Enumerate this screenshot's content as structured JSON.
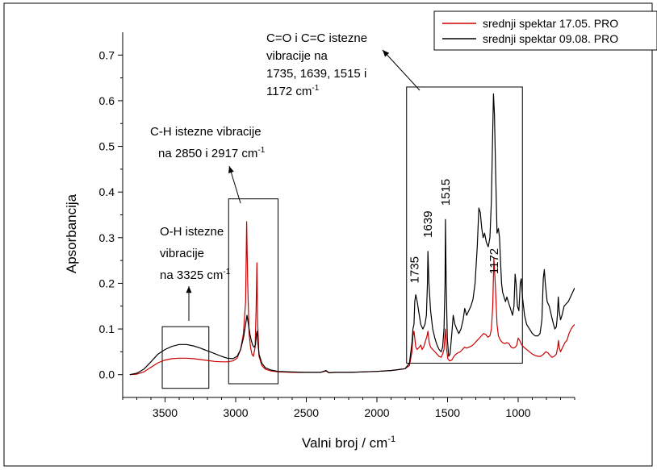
{
  "chart_data": {
    "type": "line",
    "xlabel": "Valni broj / cm",
    "xlabel_sup": "-1",
    "ylabel": "Apsorbancija",
    "xlim": [
      3800,
      600
    ],
    "ylim": [
      -0.05,
      0.75
    ],
    "x_reversed": true,
    "x_ticks": [
      3500,
      3000,
      2500,
      2000,
      1500,
      1000
    ],
    "x_tick_labels": [
      "3500",
      "3000",
      "2500",
      "2000",
      "1500",
      "1000"
    ],
    "y_ticks": [
      0.0,
      0.1,
      0.2,
      0.3,
      0.4,
      0.5,
      0.6,
      0.7
    ],
    "y_tick_labels": [
      "0.0",
      "0.1",
      "0.2",
      "0.3",
      "0.4",
      "0.5",
      "0.6",
      "0.7"
    ],
    "grid": false,
    "legend_position": "top-right",
    "series": [
      {
        "name": "srednji spektar 17.05. PRO",
        "color": "#cc0000",
        "points": [
          [
            3750,
            0.0
          ],
          [
            3700,
            0.001
          ],
          [
            3650,
            0.006
          ],
          [
            3600,
            0.016
          ],
          [
            3550,
            0.026
          ],
          [
            3500,
            0.032
          ],
          [
            3450,
            0.035
          ],
          [
            3400,
            0.036
          ],
          [
            3350,
            0.036
          ],
          [
            3300,
            0.035
          ],
          [
            3250,
            0.033
          ],
          [
            3200,
            0.031
          ],
          [
            3150,
            0.029
          ],
          [
            3100,
            0.028
          ],
          [
            3060,
            0.028
          ],
          [
            3020,
            0.03
          ],
          [
            2990,
            0.036
          ],
          [
            2965,
            0.055
          ],
          [
            2945,
            0.09
          ],
          [
            2930,
            0.16
          ],
          [
            2922,
            0.335
          ],
          [
            2915,
            0.2
          ],
          [
            2905,
            0.09
          ],
          [
            2895,
            0.06
          ],
          [
            2885,
            0.045
          ],
          [
            2875,
            0.04
          ],
          [
            2862,
            0.06
          ],
          [
            2855,
            0.15
          ],
          [
            2850,
            0.245
          ],
          [
            2845,
            0.12
          ],
          [
            2835,
            0.04
          ],
          [
            2815,
            0.02
          ],
          [
            2790,
            0.012
          ],
          [
            2750,
            0.008
          ],
          [
            2700,
            0.006
          ],
          [
            2600,
            0.005
          ],
          [
            2500,
            0.005
          ],
          [
            2400,
            0.005
          ],
          [
            2360,
            0.008
          ],
          [
            2340,
            0.004
          ],
          [
            2300,
            0.005
          ],
          [
            2200,
            0.005
          ],
          [
            2100,
            0.006
          ],
          [
            2000,
            0.007
          ],
          [
            1900,
            0.009
          ],
          [
            1850,
            0.011
          ],
          [
            1800,
            0.013
          ],
          [
            1770,
            0.02
          ],
          [
            1752,
            0.05
          ],
          [
            1745,
            0.085
          ],
          [
            1738,
            0.095
          ],
          [
            1732,
            0.08
          ],
          [
            1725,
            0.06
          ],
          [
            1715,
            0.055
          ],
          [
            1700,
            0.06
          ],
          [
            1690,
            0.065
          ],
          [
            1680,
            0.055
          ],
          [
            1670,
            0.06
          ],
          [
            1655,
            0.075
          ],
          [
            1645,
            0.085
          ],
          [
            1639,
            0.095
          ],
          [
            1630,
            0.07
          ],
          [
            1620,
            0.06
          ],
          [
            1605,
            0.055
          ],
          [
            1590,
            0.05
          ],
          [
            1575,
            0.045
          ],
          [
            1560,
            0.04
          ],
          [
            1545,
            0.038
          ],
          [
            1535,
            0.045
          ],
          [
            1525,
            0.055
          ],
          [
            1515,
            0.1
          ],
          [
            1508,
            0.06
          ],
          [
            1498,
            0.035
          ],
          [
            1485,
            0.03
          ],
          [
            1470,
            0.032
          ],
          [
            1455,
            0.04
          ],
          [
            1440,
            0.045
          ],
          [
            1425,
            0.048
          ],
          [
            1410,
            0.05
          ],
          [
            1395,
            0.055
          ],
          [
            1380,
            0.06
          ],
          [
            1365,
            0.058
          ],
          [
            1350,
            0.06
          ],
          [
            1335,
            0.062
          ],
          [
            1320,
            0.065
          ],
          [
            1305,
            0.07
          ],
          [
            1290,
            0.075
          ],
          [
            1275,
            0.08
          ],
          [
            1260,
            0.085
          ],
          [
            1245,
            0.09
          ],
          [
            1230,
            0.088
          ],
          [
            1215,
            0.082
          ],
          [
            1200,
            0.085
          ],
          [
            1190,
            0.1
          ],
          [
            1180,
            0.15
          ],
          [
            1172,
            0.255
          ],
          [
            1162,
            0.2
          ],
          [
            1150,
            0.11
          ],
          [
            1140,
            0.085
          ],
          [
            1125,
            0.075
          ],
          [
            1110,
            0.07
          ],
          [
            1095,
            0.068
          ],
          [
            1080,
            0.07
          ],
          [
            1065,
            0.068
          ],
          [
            1050,
            0.06
          ],
          [
            1035,
            0.058
          ],
          [
            1020,
            0.06
          ],
          [
            1010,
            0.065
          ],
          [
            1000,
            0.08
          ],
          [
            990,
            0.075
          ],
          [
            975,
            0.065
          ],
          [
            960,
            0.06
          ],
          [
            940,
            0.055
          ],
          [
            920,
            0.05
          ],
          [
            900,
            0.045
          ],
          [
            880,
            0.042
          ],
          [
            860,
            0.04
          ],
          [
            840,
            0.04
          ],
          [
            820,
            0.045
          ],
          [
            805,
            0.05
          ],
          [
            790,
            0.048
          ],
          [
            775,
            0.042
          ],
          [
            760,
            0.038
          ],
          [
            745,
            0.04
          ],
          [
            730,
            0.045
          ],
          [
            720,
            0.06
          ],
          [
            715,
            0.075
          ],
          [
            710,
            0.06
          ],
          [
            700,
            0.05
          ],
          [
            685,
            0.06
          ],
          [
            670,
            0.07
          ],
          [
            655,
            0.075
          ],
          [
            640,
            0.09
          ],
          [
            625,
            0.1
          ],
          [
            615,
            0.105
          ],
          [
            600,
            0.11
          ]
        ]
      },
      {
        "name": "srednji spektar 09.08. PRO",
        "color": "#000000",
        "points": [
          [
            3750,
            0.0
          ],
          [
            3700,
            0.003
          ],
          [
            3650,
            0.012
          ],
          [
            3600,
            0.028
          ],
          [
            3550,
            0.045
          ],
          [
            3500,
            0.055
          ],
          [
            3450,
            0.062
          ],
          [
            3400,
            0.066
          ],
          [
            3350,
            0.066
          ],
          [
            3300,
            0.063
          ],
          [
            3250,
            0.058
          ],
          [
            3200,
            0.052
          ],
          [
            3150,
            0.046
          ],
          [
            3100,
            0.04
          ],
          [
            3060,
            0.036
          ],
          [
            3020,
            0.035
          ],
          [
            2990,
            0.04
          ],
          [
            2965,
            0.055
          ],
          [
            2945,
            0.08
          ],
          [
            2930,
            0.11
          ],
          [
            2920,
            0.13
          ],
          [
            2912,
            0.115
          ],
          [
            2900,
            0.09
          ],
          [
            2890,
            0.075
          ],
          [
            2880,
            0.065
          ],
          [
            2870,
            0.06
          ],
          [
            2860,
            0.065
          ],
          [
            2852,
            0.09
          ],
          [
            2848,
            0.095
          ],
          [
            2842,
            0.07
          ],
          [
            2835,
            0.045
          ],
          [
            2815,
            0.025
          ],
          [
            2790,
            0.015
          ],
          [
            2750,
            0.01
          ],
          [
            2700,
            0.007
          ],
          [
            2600,
            0.006
          ],
          [
            2500,
            0.005
          ],
          [
            2400,
            0.005
          ],
          [
            2360,
            0.009
          ],
          [
            2340,
            0.004
          ],
          [
            2300,
            0.005
          ],
          [
            2200,
            0.005
          ],
          [
            2100,
            0.006
          ],
          [
            2000,
            0.007
          ],
          [
            1900,
            0.009
          ],
          [
            1850,
            0.011
          ],
          [
            1800,
            0.013
          ],
          [
            1770,
            0.025
          ],
          [
            1752,
            0.07
          ],
          [
            1745,
            0.1
          ],
          [
            1738,
            0.11
          ],
          [
            1732,
            0.16
          ],
          [
            1725,
            0.175
          ],
          [
            1715,
            0.16
          ],
          [
            1700,
            0.13
          ],
          [
            1690,
            0.11
          ],
          [
            1675,
            0.1
          ],
          [
            1660,
            0.11
          ],
          [
            1650,
            0.13
          ],
          [
            1642,
            0.2
          ],
          [
            1639,
            0.27
          ],
          [
            1632,
            0.2
          ],
          [
            1620,
            0.14
          ],
          [
            1605,
            0.1
          ],
          [
            1590,
            0.08
          ],
          [
            1575,
            0.065
          ],
          [
            1560,
            0.055
          ],
          [
            1545,
            0.05
          ],
          [
            1535,
            0.06
          ],
          [
            1525,
            0.1
          ],
          [
            1518,
            0.2
          ],
          [
            1515,
            0.34
          ],
          [
            1510,
            0.2
          ],
          [
            1502,
            0.08
          ],
          [
            1492,
            0.04
          ],
          [
            1482,
            0.045
          ],
          [
            1470,
            0.09
          ],
          [
            1460,
            0.13
          ],
          [
            1448,
            0.11
          ],
          [
            1435,
            0.1
          ],
          [
            1420,
            0.09
          ],
          [
            1405,
            0.1
          ],
          [
            1390,
            0.12
          ],
          [
            1378,
            0.145
          ],
          [
            1365,
            0.13
          ],
          [
            1350,
            0.14
          ],
          [
            1335,
            0.15
          ],
          [
            1320,
            0.165
          ],
          [
            1305,
            0.2
          ],
          [
            1290,
            0.28
          ],
          [
            1278,
            0.365
          ],
          [
            1268,
            0.355
          ],
          [
            1258,
            0.32
          ],
          [
            1248,
            0.3
          ],
          [
            1238,
            0.31
          ],
          [
            1225,
            0.29
          ],
          [
            1212,
            0.28
          ],
          [
            1200,
            0.3
          ],
          [
            1190,
            0.38
          ],
          [
            1182,
            0.5
          ],
          [
            1175,
            0.615
          ],
          [
            1168,
            0.57
          ],
          [
            1160,
            0.45
          ],
          [
            1150,
            0.31
          ],
          [
            1140,
            0.32
          ],
          [
            1132,
            0.3
          ],
          [
            1125,
            0.25
          ],
          [
            1118,
            0.2
          ],
          [
            1110,
            0.18
          ],
          [
            1100,
            0.17
          ],
          [
            1090,
            0.16
          ],
          [
            1080,
            0.17
          ],
          [
            1065,
            0.155
          ],
          [
            1050,
            0.14
          ],
          [
            1040,
            0.13
          ],
          [
            1030,
            0.15
          ],
          [
            1022,
            0.22
          ],
          [
            1015,
            0.2
          ],
          [
            1005,
            0.15
          ],
          [
            995,
            0.14
          ],
          [
            985,
            0.2
          ],
          [
            978,
            0.21
          ],
          [
            970,
            0.17
          ],
          [
            955,
            0.13
          ],
          [
            940,
            0.11
          ],
          [
            920,
            0.1
          ],
          [
            900,
            0.09
          ],
          [
            880,
            0.085
          ],
          [
            860,
            0.085
          ],
          [
            845,
            0.09
          ],
          [
            832,
            0.12
          ],
          [
            822,
            0.21
          ],
          [
            815,
            0.23
          ],
          [
            808,
            0.2
          ],
          [
            795,
            0.16
          ],
          [
            780,
            0.15
          ],
          [
            765,
            0.13
          ],
          [
            750,
            0.11
          ],
          [
            740,
            0.1
          ],
          [
            730,
            0.105
          ],
          [
            722,
            0.13
          ],
          [
            716,
            0.17
          ],
          [
            710,
            0.14
          ],
          [
            700,
            0.12
          ],
          [
            690,
            0.13
          ],
          [
            675,
            0.15
          ],
          [
            660,
            0.155
          ],
          [
            645,
            0.16
          ],
          [
            630,
            0.17
          ],
          [
            615,
            0.18
          ],
          [
            600,
            0.19
          ]
        ]
      }
    ],
    "annotations": {
      "oh": {
        "lines": [
          "O-H istezne",
          "vibracije",
          "na 3325 cm"
        ],
        "sup": "-1"
      },
      "ch": {
        "lines": [
          "C-H istezne vibracije",
          "na 2850 i 2917 cm"
        ],
        "sup": "-1"
      },
      "co": {
        "lines": [
          "C=O i C=C istezne",
          "vibracije na",
          "1735, 1639, 1515 i",
          "1172 cm"
        ],
        "sup": "-1"
      }
    },
    "peak_labels": [
      {
        "x": 1735,
        "y": 0.2,
        "text": "1735"
      },
      {
        "x": 1639,
        "y": 0.3,
        "text": "1639"
      },
      {
        "x": 1515,
        "y": 0.37,
        "text": "1515"
      },
      {
        "x": 1172,
        "y": 0.22,
        "text": "1172"
      }
    ],
    "region_boxes": [
      {
        "name": "oh",
        "x_from": 3520,
        "x_to": 3190,
        "y_from": -0.03,
        "y_to": 0.105
      },
      {
        "name": "ch",
        "x_from": 3050,
        "x_to": 2700,
        "y_from": -0.02,
        "y_to": 0.385
      },
      {
        "name": "co",
        "x_from": 1790,
        "x_to": 970,
        "y_from": 0.025,
        "y_to": 0.63
      }
    ]
  }
}
